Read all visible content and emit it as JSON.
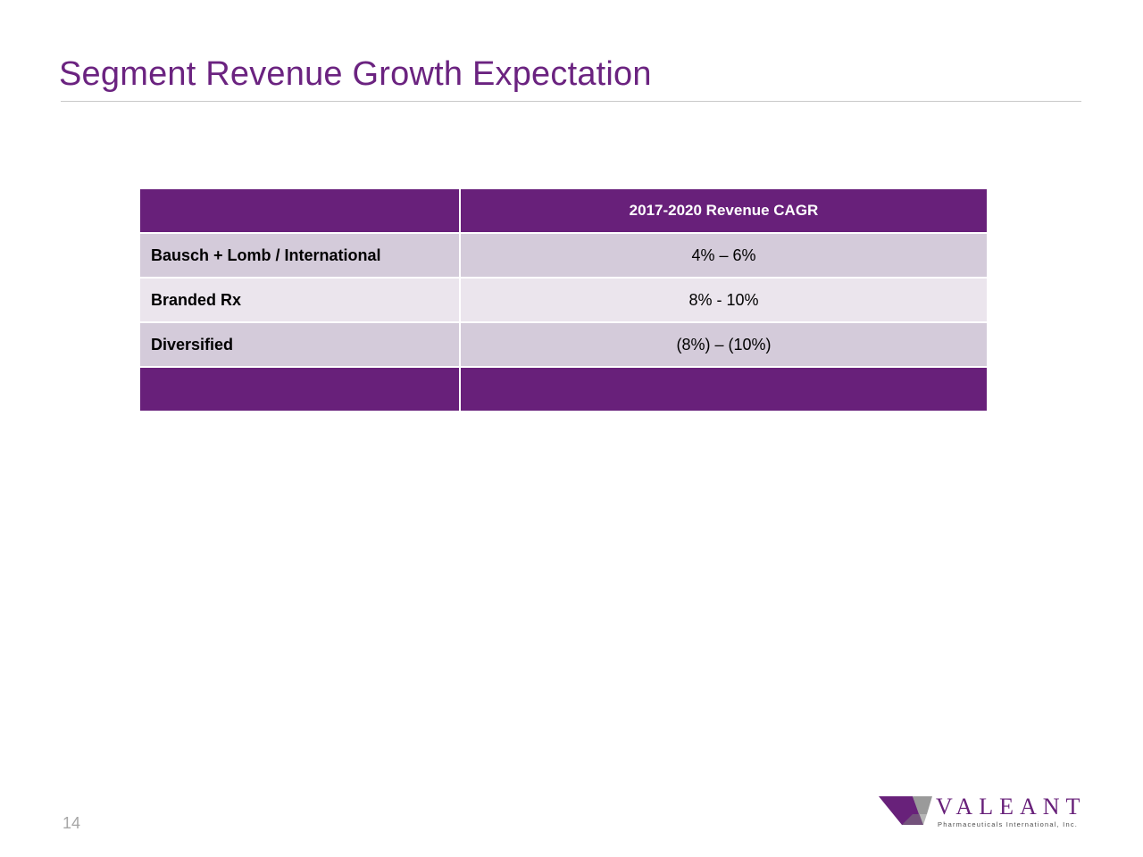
{
  "slide": {
    "title": "Segment Revenue Growth Expectation",
    "page_number": "14"
  },
  "colors": {
    "brand_purple": "#68217a",
    "header_fill": "#68207a",
    "row_dark": "#d4cbda",
    "row_light": "#ebe5ed",
    "title_color": "#6b2380"
  },
  "table": {
    "header": [
      "",
      "2017-2020 Revenue CAGR"
    ],
    "rows": [
      {
        "segment": "Bausch + Lomb / International",
        "cagr": "4% – 6%"
      },
      {
        "segment": "Branded Rx",
        "cagr": "8% - 10%"
      },
      {
        "segment": "Diversified",
        "cagr": "(8%) – (10%)"
      }
    ],
    "footer": [
      "",
      ""
    ]
  },
  "logo": {
    "name": "VALEANT",
    "tagline": "Pharmaceuticals International, Inc.",
    "mark_icon": "valeant-v-mark-icon"
  }
}
